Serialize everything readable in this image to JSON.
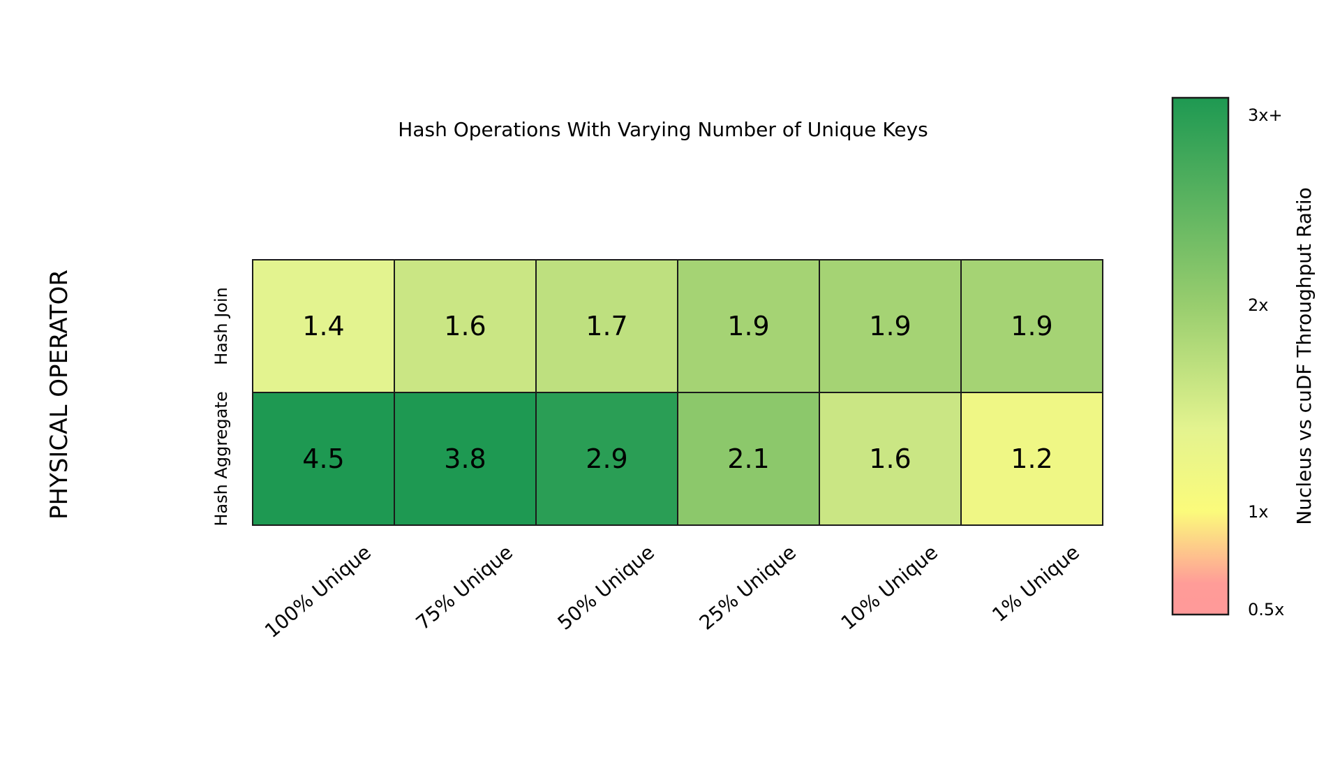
{
  "chart_data": {
    "type": "heatmap",
    "title": "Hash Operations With Varying Number of Unique Keys",
    "ylabel": "PHYSICAL OPERATOR",
    "xlabel": "",
    "columns": [
      "100% Unique",
      "75% Unique",
      "50% Unique",
      "25% Unique",
      "10% Unique",
      "1% Unique"
    ],
    "rows": [
      "Hash Join",
      "Hash Aggregate"
    ],
    "values": [
      [
        1.4,
        1.6,
        1.7,
        1.9,
        1.9,
        1.9
      ],
      [
        4.5,
        3.8,
        2.9,
        2.1,
        1.6,
        1.2
      ]
    ],
    "colorbar": {
      "label": "Nucleus vs cuDF Throughput Ratio",
      "ticks": [
        {
          "value": 3.0,
          "label": "3x+"
        },
        {
          "value": 2.0,
          "label": "2x"
        },
        {
          "value": 1.0,
          "label": "1x"
        },
        {
          "value": 0.5,
          "label": "0.5x"
        }
      ],
      "range": [
        0.5,
        3.0
      ],
      "colors": [
        "#ff9999",
        "#ffff80",
        "#1e9952"
      ],
      "color_stops": [
        {
          "value": 0.5,
          "color": "#ff9999"
        },
        {
          "value": 0.65,
          "color": "#ff9c98"
        },
        {
          "value": 1.0,
          "color": "#fbfb7b"
        },
        {
          "value": 1.4,
          "color": "#e3f38f"
        },
        {
          "value": 2.0,
          "color": "#98cd6e"
        },
        {
          "value": 3.0,
          "color": "#1e9952"
        }
      ]
    },
    "grid": true,
    "legend": "right"
  }
}
